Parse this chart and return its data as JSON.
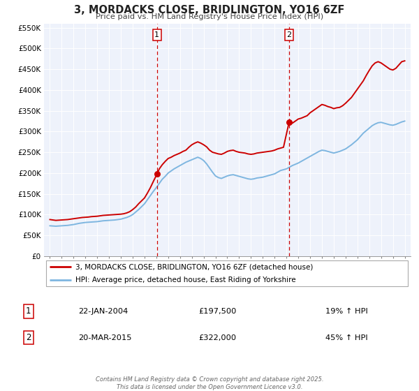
{
  "title": "3, MORDACKS CLOSE, BRIDLINGTON, YO16 6ZF",
  "subtitle": "Price paid vs. HM Land Registry's House Price Index (HPI)",
  "property_label": "3, MORDACKS CLOSE, BRIDLINGTON, YO16 6ZF (detached house)",
  "hpi_label": "HPI: Average price, detached house, East Riding of Yorkshire",
  "sale1_date": "22-JAN-2004",
  "sale1_price": 197500,
  "sale1_hpi": "19% ↑ HPI",
  "sale1_year": 2004.055,
  "sale2_date": "20-MAR-2015",
  "sale2_price": 322000,
  "sale2_hpi": "45% ↑ HPI",
  "sale2_year": 2015.22,
  "xlim": [
    1994.5,
    2025.5
  ],
  "ylim": [
    0,
    560000
  ],
  "yticks": [
    0,
    50000,
    100000,
    150000,
    200000,
    250000,
    300000,
    350000,
    400000,
    450000,
    500000,
    550000
  ],
  "ytick_labels": [
    "£0",
    "£50K",
    "£100K",
    "£150K",
    "£200K",
    "£250K",
    "£300K",
    "£350K",
    "£400K",
    "£450K",
    "£500K",
    "£550K"
  ],
  "property_color": "#cc0000",
  "hpi_color": "#7eb6e0",
  "background_color": "#eef2fb",
  "footer_text": "Contains HM Land Registry data © Crown copyright and database right 2025.\nThis data is licensed under the Open Government Licence v3.0.",
  "property_hpi_data": [
    [
      1995.0,
      88000
    ],
    [
      1995.25,
      87000
    ],
    [
      1995.5,
      86000
    ],
    [
      1995.75,
      86500
    ],
    [
      1996.0,
      87000
    ],
    [
      1996.25,
      87500
    ],
    [
      1996.5,
      88000
    ],
    [
      1996.75,
      89000
    ],
    [
      1997.0,
      90000
    ],
    [
      1997.25,
      91000
    ],
    [
      1997.5,
      92000
    ],
    [
      1997.75,
      93000
    ],
    [
      1998.0,
      93500
    ],
    [
      1998.25,
      94000
    ],
    [
      1998.5,
      95000
    ],
    [
      1998.75,
      95500
    ],
    [
      1999.0,
      96000
    ],
    [
      1999.25,
      97000
    ],
    [
      1999.5,
      98000
    ],
    [
      1999.75,
      98500
    ],
    [
      2000.0,
      99000
    ],
    [
      2000.25,
      99500
    ],
    [
      2000.5,
      100000
    ],
    [
      2000.75,
      100500
    ],
    [
      2001.0,
      101000
    ],
    [
      2001.25,
      102000
    ],
    [
      2001.5,
      104000
    ],
    [
      2001.75,
      107000
    ],
    [
      2002.0,
      112000
    ],
    [
      2002.25,
      118000
    ],
    [
      2002.5,
      126000
    ],
    [
      2002.75,
      133000
    ],
    [
      2003.0,
      140000
    ],
    [
      2003.25,
      152000
    ],
    [
      2003.5,
      165000
    ],
    [
      2003.75,
      180000
    ],
    [
      2004.055,
      197500
    ],
    [
      2004.25,
      210000
    ],
    [
      2004.5,
      220000
    ],
    [
      2004.75,
      228000
    ],
    [
      2005.0,
      235000
    ],
    [
      2005.25,
      238000
    ],
    [
      2005.5,
      242000
    ],
    [
      2005.75,
      245000
    ],
    [
      2006.0,
      248000
    ],
    [
      2006.25,
      252000
    ],
    [
      2006.5,
      255000
    ],
    [
      2006.75,
      262000
    ],
    [
      2007.0,
      268000
    ],
    [
      2007.25,
      272000
    ],
    [
      2007.5,
      275000
    ],
    [
      2007.75,
      272000
    ],
    [
      2008.0,
      268000
    ],
    [
      2008.25,
      263000
    ],
    [
      2008.5,
      255000
    ],
    [
      2008.75,
      250000
    ],
    [
      2009.0,
      248000
    ],
    [
      2009.25,
      246000
    ],
    [
      2009.5,
      245000
    ],
    [
      2009.75,
      248000
    ],
    [
      2010.0,
      252000
    ],
    [
      2010.25,
      254000
    ],
    [
      2010.5,
      255000
    ],
    [
      2010.75,
      252000
    ],
    [
      2011.0,
      250000
    ],
    [
      2011.25,
      249000
    ],
    [
      2011.5,
      248000
    ],
    [
      2011.75,
      246000
    ],
    [
      2012.0,
      245000
    ],
    [
      2012.25,
      246000
    ],
    [
      2012.5,
      248000
    ],
    [
      2012.75,
      249000
    ],
    [
      2013.0,
      250000
    ],
    [
      2013.25,
      251000
    ],
    [
      2013.5,
      252000
    ],
    [
      2013.75,
      253000
    ],
    [
      2014.0,
      255000
    ],
    [
      2014.25,
      258000
    ],
    [
      2014.5,
      260000
    ],
    [
      2014.75,
      262000
    ],
    [
      2015.22,
      322000
    ],
    [
      2015.5,
      320000
    ],
    [
      2015.75,
      325000
    ],
    [
      2016.0,
      330000
    ],
    [
      2016.25,
      332000
    ],
    [
      2016.5,
      335000
    ],
    [
      2016.75,
      338000
    ],
    [
      2017.0,
      345000
    ],
    [
      2017.25,
      350000
    ],
    [
      2017.5,
      355000
    ],
    [
      2017.75,
      360000
    ],
    [
      2018.0,
      365000
    ],
    [
      2018.25,
      363000
    ],
    [
      2018.5,
      360000
    ],
    [
      2018.75,
      358000
    ],
    [
      2019.0,
      355000
    ],
    [
      2019.25,
      357000
    ],
    [
      2019.5,
      358000
    ],
    [
      2019.75,
      362000
    ],
    [
      2020.0,
      368000
    ],
    [
      2020.25,
      375000
    ],
    [
      2020.5,
      382000
    ],
    [
      2020.75,
      392000
    ],
    [
      2021.0,
      402000
    ],
    [
      2021.25,
      412000
    ],
    [
      2021.5,
      422000
    ],
    [
      2021.75,
      435000
    ],
    [
      2022.0,
      447000
    ],
    [
      2022.25,
      458000
    ],
    [
      2022.5,
      465000
    ],
    [
      2022.75,
      468000
    ],
    [
      2023.0,
      465000
    ],
    [
      2023.25,
      460000
    ],
    [
      2023.5,
      455000
    ],
    [
      2023.75,
      450000
    ],
    [
      2024.0,
      448000
    ],
    [
      2024.25,
      452000
    ],
    [
      2024.5,
      460000
    ],
    [
      2024.75,
      468000
    ],
    [
      2025.0,
      470000
    ]
  ],
  "hpi_data": [
    [
      1995.0,
      73000
    ],
    [
      1995.25,
      72500
    ],
    [
      1995.5,
      72000
    ],
    [
      1995.75,
      72500
    ],
    [
      1996.0,
      73000
    ],
    [
      1996.25,
      73500
    ],
    [
      1996.5,
      74000
    ],
    [
      1996.75,
      75000
    ],
    [
      1997.0,
      76000
    ],
    [
      1997.25,
      77500
    ],
    [
      1997.5,
      79000
    ],
    [
      1997.75,
      80000
    ],
    [
      1998.0,
      81000
    ],
    [
      1998.25,
      81500
    ],
    [
      1998.5,
      82000
    ],
    [
      1998.75,
      82500
    ],
    [
      1999.0,
      83000
    ],
    [
      1999.25,
      84000
    ],
    [
      1999.5,
      85000
    ],
    [
      1999.75,
      85500
    ],
    [
      2000.0,
      86000
    ],
    [
      2000.25,
      86500
    ],
    [
      2000.5,
      87000
    ],
    [
      2000.75,
      88000
    ],
    [
      2001.0,
      89000
    ],
    [
      2001.25,
      91000
    ],
    [
      2001.5,
      93000
    ],
    [
      2001.75,
      96000
    ],
    [
      2002.0,
      100000
    ],
    [
      2002.25,
      106000
    ],
    [
      2002.5,
      112000
    ],
    [
      2002.75,
      119000
    ],
    [
      2003.0,
      126000
    ],
    [
      2003.25,
      136000
    ],
    [
      2003.5,
      146000
    ],
    [
      2003.75,
      156000
    ],
    [
      2004.0,
      165000
    ],
    [
      2004.25,
      175000
    ],
    [
      2004.5,
      185000
    ],
    [
      2004.75,
      192000
    ],
    [
      2005.0,
      200000
    ],
    [
      2005.25,
      205000
    ],
    [
      2005.5,
      210000
    ],
    [
      2005.75,
      214000
    ],
    [
      2006.0,
      218000
    ],
    [
      2006.25,
      222000
    ],
    [
      2006.5,
      226000
    ],
    [
      2006.75,
      229000
    ],
    [
      2007.0,
      232000
    ],
    [
      2007.25,
      235000
    ],
    [
      2007.5,
      238000
    ],
    [
      2007.75,
      235000
    ],
    [
      2008.0,
      230000
    ],
    [
      2008.25,
      222000
    ],
    [
      2008.5,
      212000
    ],
    [
      2008.75,
      202000
    ],
    [
      2009.0,
      193000
    ],
    [
      2009.25,
      189000
    ],
    [
      2009.5,
      187000
    ],
    [
      2009.75,
      190000
    ],
    [
      2010.0,
      193000
    ],
    [
      2010.25,
      195000
    ],
    [
      2010.5,
      196000
    ],
    [
      2010.75,
      194000
    ],
    [
      2011.0,
      192000
    ],
    [
      2011.25,
      190000
    ],
    [
      2011.5,
      188000
    ],
    [
      2011.75,
      186000
    ],
    [
      2012.0,
      185000
    ],
    [
      2012.25,
      186000
    ],
    [
      2012.5,
      188000
    ],
    [
      2012.75,
      189000
    ],
    [
      2013.0,
      190000
    ],
    [
      2013.25,
      192000
    ],
    [
      2013.5,
      194000
    ],
    [
      2013.75,
      196000
    ],
    [
      2014.0,
      198000
    ],
    [
      2014.25,
      202000
    ],
    [
      2014.5,
      206000
    ],
    [
      2014.75,
      208000
    ],
    [
      2015.0,
      210000
    ],
    [
      2015.25,
      214000
    ],
    [
      2015.5,
      218000
    ],
    [
      2015.75,
      221000
    ],
    [
      2016.0,
      224000
    ],
    [
      2016.25,
      228000
    ],
    [
      2016.5,
      232000
    ],
    [
      2016.75,
      236000
    ],
    [
      2017.0,
      240000
    ],
    [
      2017.25,
      244000
    ],
    [
      2017.5,
      248000
    ],
    [
      2017.75,
      252000
    ],
    [
      2018.0,
      255000
    ],
    [
      2018.25,
      254000
    ],
    [
      2018.5,
      252000
    ],
    [
      2018.75,
      250000
    ],
    [
      2019.0,
      248000
    ],
    [
      2019.25,
      250000
    ],
    [
      2019.5,
      252000
    ],
    [
      2019.75,
      255000
    ],
    [
      2020.0,
      258000
    ],
    [
      2020.25,
      263000
    ],
    [
      2020.5,
      268000
    ],
    [
      2020.75,
      274000
    ],
    [
      2021.0,
      280000
    ],
    [
      2021.25,
      288000
    ],
    [
      2021.5,
      296000
    ],
    [
      2021.75,
      302000
    ],
    [
      2022.0,
      308000
    ],
    [
      2022.25,
      314000
    ],
    [
      2022.5,
      318000
    ],
    [
      2022.75,
      321000
    ],
    [
      2023.0,
      322000
    ],
    [
      2023.25,
      320000
    ],
    [
      2023.5,
      318000
    ],
    [
      2023.75,
      316000
    ],
    [
      2024.0,
      315000
    ],
    [
      2024.25,
      317000
    ],
    [
      2024.5,
      320000
    ],
    [
      2024.75,
      323000
    ],
    [
      2025.0,
      325000
    ]
  ]
}
